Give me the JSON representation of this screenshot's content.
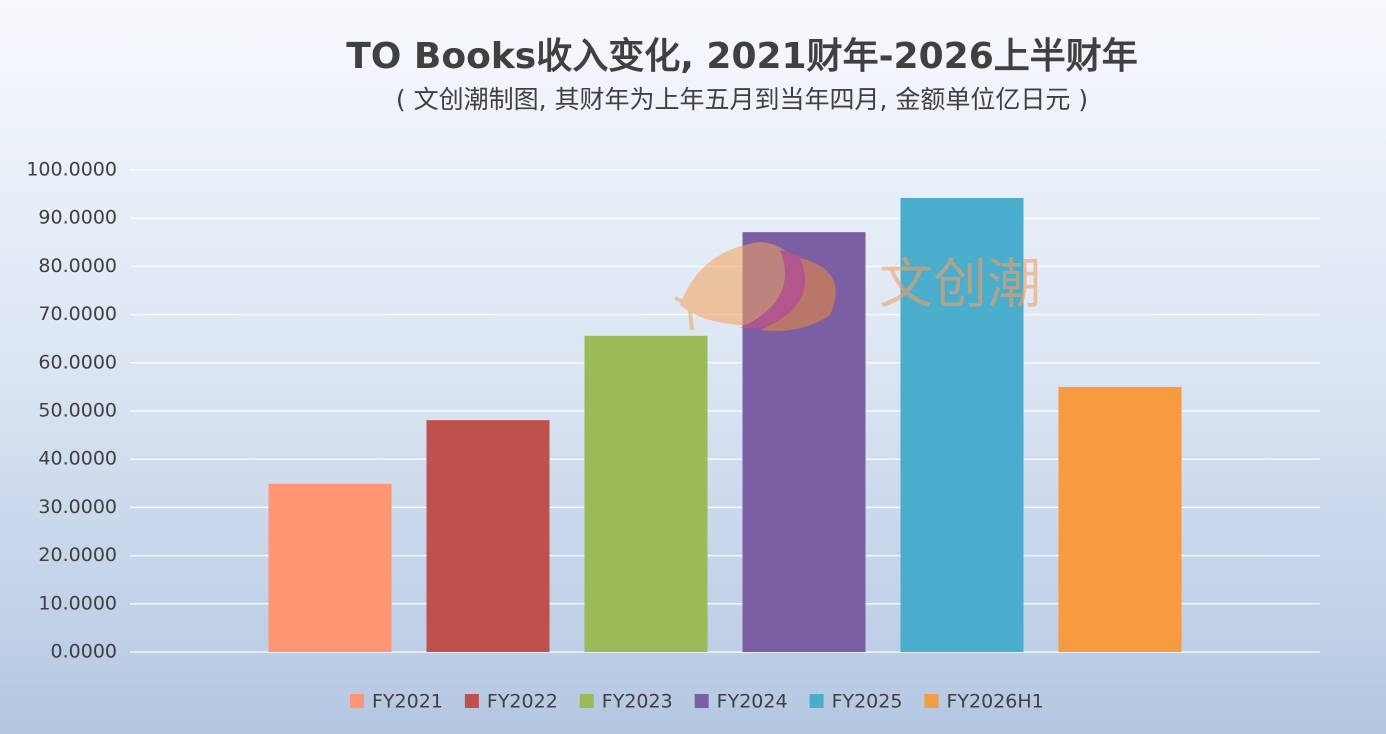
{
  "chart_data": {
    "type": "bar",
    "title": "TO Books收入变化, 2021财年-2026上半财年",
    "subtitle": "( 文创潮制图, 其财年为上年五月到当年四月, 金额单位亿日元 )",
    "watermark": "文创潮",
    "categories": [
      null
    ],
    "series": [
      {
        "name": "FY2021",
        "color": "#ff9572",
        "values": [
          34.9
        ]
      },
      {
        "name": "FY2022",
        "color": "#c0504d",
        "values": [
          48.1
        ]
      },
      {
        "name": "FY2023",
        "color": "#9bbb59",
        "values": [
          65.6
        ]
      },
      {
        "name": "FY2024",
        "color": "#7b5ea4",
        "values": [
          87.1
        ]
      },
      {
        "name": "FY2025",
        "color": "#4aadcc",
        "values": [
          94.2
        ]
      },
      {
        "name": "FY2026H1",
        "color": "#f79a40",
        "values": [
          55.0
        ]
      }
    ],
    "ylim": [
      0,
      100
    ],
    "yticks": [
      {
        "value": 0,
        "label": "0.0000"
      },
      {
        "value": 10,
        "label": "10.0000"
      },
      {
        "value": 20,
        "label": "20.0000"
      },
      {
        "value": 30,
        "label": "30.0000"
      },
      {
        "value": 40,
        "label": "40.0000"
      },
      {
        "value": 50,
        "label": "50.0000"
      },
      {
        "value": 60,
        "label": "60.0000"
      },
      {
        "value": 70,
        "label": "70.0000"
      },
      {
        "value": 80,
        "label": "80.0000"
      },
      {
        "value": 90,
        "label": "90.0000"
      },
      {
        "value": 100,
        "label": "100.0000"
      }
    ],
    "grid": true,
    "legend": "bottom"
  }
}
